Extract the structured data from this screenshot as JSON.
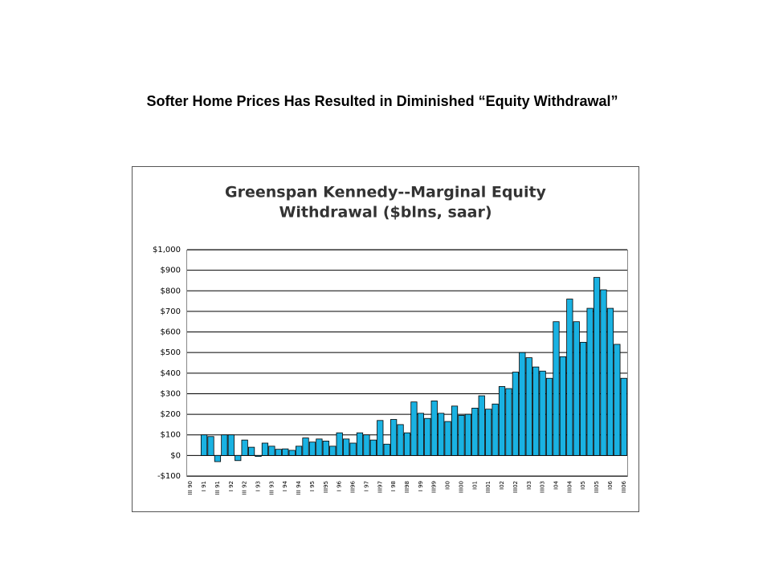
{
  "slide_title": "Softer Home Prices Has Resulted in Diminished “Equity Withdrawal”",
  "chart_data": {
    "type": "bar",
    "title": [
      "Greenspan Kennedy--Marginal Equity",
      "Withdrawal ($blns, saar)"
    ],
    "categories": [
      "III 90",
      null,
      "I 91",
      null,
      "III 91",
      null,
      "I 92",
      null,
      "III 92",
      null,
      "I 93",
      null,
      "III 93",
      null,
      "I 94",
      null,
      "III 94",
      null,
      "I 95",
      null,
      "III95",
      null,
      "I 96",
      null,
      "III96",
      null,
      "I 97",
      null,
      "III97",
      null,
      "I 98",
      null,
      "III98",
      null,
      "I 99",
      null,
      "III99",
      null,
      "I00",
      null,
      "III00",
      null,
      "I01",
      null,
      "III01",
      null,
      "I02",
      null,
      "III02",
      null,
      "I03",
      null,
      "III03",
      null,
      "I04",
      null,
      "III04",
      null,
      "I05",
      null,
      "III05",
      null,
      "I06",
      null,
      "III06"
    ],
    "values": [
      0,
      0,
      100,
      92,
      -30,
      100,
      100,
      -25,
      75,
      40,
      -5,
      60,
      45,
      30,
      32,
      25,
      45,
      85,
      65,
      80,
      70,
      45,
      110,
      80,
      60,
      110,
      100,
      75,
      170,
      55,
      175,
      150,
      110,
      260,
      205,
      180,
      265,
      205,
      165,
      240,
      195,
      200,
      230,
      290,
      225,
      250,
      335,
      325,
      405,
      500,
      475,
      430,
      410,
      375,
      650,
      480,
      760,
      650,
      550,
      715,
      865,
      805,
      715,
      540,
      375
    ],
    "color": "#1ab2e2",
    "ylim": [
      -100,
      1000
    ],
    "yticks": [
      {
        "value": -100,
        "label": "-$100"
      },
      {
        "value": 0,
        "label": "$0"
      },
      {
        "value": 100,
        "label": "$100"
      },
      {
        "value": 200,
        "label": "$200"
      },
      {
        "value": 300,
        "label": "$300"
      },
      {
        "value": 400,
        "label": "$400"
      },
      {
        "value": 500,
        "label": "$500"
      },
      {
        "value": 600,
        "label": "$600"
      },
      {
        "value": 700,
        "label": "$700"
      },
      {
        "value": 800,
        "label": "$800"
      },
      {
        "value": 900,
        "label": "$900"
      },
      {
        "value": 1000,
        "label": "$1,000"
      }
    ],
    "grid": true
  }
}
